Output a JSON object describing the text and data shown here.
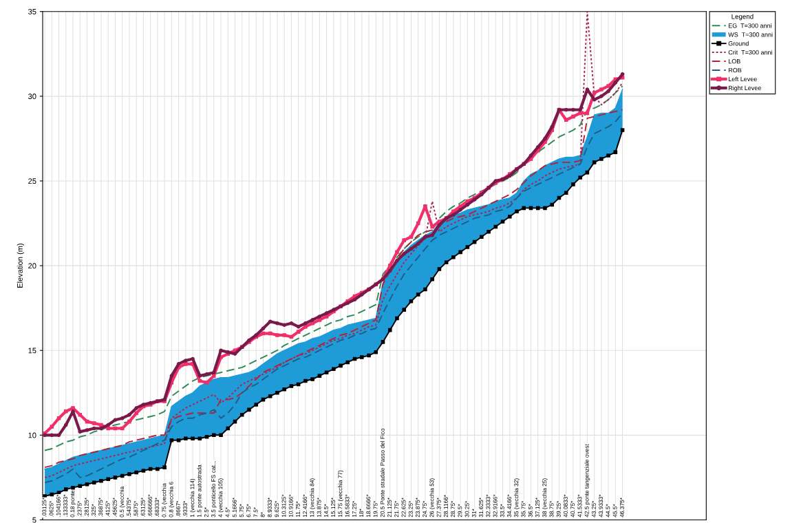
{
  "chart_data": {
    "type": "line",
    "ylabel": "Elevation (m)",
    "legend_title": "Legend",
    "legend": "top right",
    "grid": true,
    "ylim": [
      5,
      35
    ],
    "yticks": [
      5,
      10,
      15,
      20,
      25,
      30,
      35
    ],
    "categories": [
      ".03125*",
      ".0625*",
      ".104166*",
      ".133333*",
      "0.18 ponte",
      ".2375*",
      ".28125*",
      ".325*",
      ".36875*",
      ".4125*",
      ".45625*",
      "0.5 (vecchia",
      ".54375*",
      ".5875*",
      ".63125*",
      ".666666*",
      ".68333*",
      "0.75 (vecchia",
      "0.8 (vecchia 6",
      ".8667*",
      ".9333*",
      "1 (vecchia 114)",
      "1.5 ponte autostrada",
      "2.5*",
      "3.5 ponticello FS cat...",
      "4 (vecchia 105)",
      "4.5*",
      "5.1666*",
      "5.75*",
      "6.75*",
      "7.5*",
      "8*",
      "8.9333*",
      "9.625*",
      "10.3125*",
      "10.9166*",
      "11.75*",
      "12.4166*",
      "13 (vecchia 84)",
      "13.875*",
      "14.5*",
      "15.125*",
      "15.75 (vecchia 77)",
      "16.5833*",
      "17.25*",
      "18*",
      "18.6666*",
      "19.75*",
      "20.5 Ponte stradale Passo del Fico",
      "21.125*",
      "21.75*",
      "22.625*",
      "23.25*",
      "23.875*",
      "24.75*",
      "26 (vecchia 53)",
      "27.375*",
      "28.1166*",
      "28.75*",
      "29.5*",
      "30.25*",
      "31*",
      "31.625*",
      "32.3333*",
      "32.9166*",
      "33.5*",
      "34.4166*",
      "35 (vecchia 32)",
      "35.75*",
      "36.5*",
      "37.125*",
      "38 (vecchia 25)",
      "38.75*",
      "39.25*",
      "40.0833*",
      "40.75*",
      "41.5333*",
      "42.5 ponte tangenziale ovest",
      "43.25*",
      "43.9333*",
      "44.5*",
      "45.5*",
      "46.375*"
    ],
    "series": [
      {
        "name": "EG  T=300 anni",
        "color": "#2e8b57",
        "line_style": "dashed",
        "marker": "none",
        "values": [
          9.1,
          9.2,
          9.4,
          9.6,
          9.7,
          9.9,
          10.0,
          10.2,
          10.3,
          10.5,
          10.6,
          10.7,
          10.8,
          10.9,
          11.0,
          11.1,
          11.2,
          11.4,
          12.3,
          12.6,
          12.9,
          13.2,
          13.4,
          13.5,
          13.6,
          13.7,
          13.8,
          13.9,
          14.0,
          14.2,
          14.4,
          14.6,
          14.8,
          15.0,
          15.3,
          15.5,
          15.7,
          15.9,
          16.1,
          16.3,
          16.5,
          16.7,
          16.8,
          17.0,
          17.1,
          17.3,
          17.5,
          17.7,
          19.5,
          20.0,
          20.5,
          21.0,
          21.4,
          21.7,
          22.0,
          22.1,
          22.8,
          23.2,
          23.5,
          23.7,
          24.0,
          24.2,
          24.4,
          24.6,
          24.8,
          25.0,
          25.2,
          25.5,
          26.0,
          26.4,
          26.7,
          27.0,
          27.3,
          27.6,
          27.8,
          28.0,
          28.3,
          29.2,
          29.3,
          29.5,
          29.8,
          30.2,
          30.6
        ]
      },
      {
        "name": "WS  T=300 anni",
        "type": "area",
        "color": "#1f9bd7",
        "line_style": "solid",
        "marker": "none",
        "values": [
          8.0,
          8.1,
          8.3,
          8.5,
          8.7,
          8.8,
          8.9,
          9.0,
          9.1,
          9.2,
          9.3,
          9.4,
          9.5,
          9.6,
          9.7,
          9.8,
          9.9,
          10.0,
          11.7,
          12.0,
          12.3,
          12.5,
          12.9,
          13.1,
          13.3,
          13.4,
          13.4,
          13.5,
          13.6,
          13.7,
          13.9,
          14.2,
          14.5,
          14.8,
          15.0,
          15.2,
          15.4,
          15.5,
          15.7,
          15.8,
          16.0,
          16.2,
          16.3,
          16.5,
          16.6,
          16.7,
          16.8,
          16.9,
          19.0,
          19.6,
          20.2,
          20.8,
          21.2,
          21.5,
          21.8,
          22.0,
          22.5,
          22.8,
          23.0,
          23.1,
          23.3,
          23.4,
          23.5,
          23.6,
          23.8,
          23.9,
          24.0,
          24.3,
          25.0,
          25.4,
          25.6,
          25.9,
          26.1,
          26.3,
          26.4,
          26.4,
          26.5,
          27.6,
          28.9,
          29.0,
          29.0,
          29.3,
          30.4
        ]
      },
      {
        "name": "Ground",
        "color": "#000000",
        "line_style": "solid",
        "marker": "square",
        "values": [
          6.4,
          6.5,
          6.6,
          6.8,
          6.9,
          7.0,
          7.1,
          7.2,
          7.3,
          7.4,
          7.5,
          7.6,
          7.7,
          7.8,
          7.9,
          8.0,
          8.0,
          8.1,
          9.7,
          9.7,
          9.8,
          9.8,
          9.8,
          9.9,
          10.0,
          10.0,
          10.4,
          10.8,
          11.2,
          11.5,
          11.8,
          12.1,
          12.3,
          12.5,
          12.7,
          12.9,
          13.0,
          13.2,
          13.3,
          13.5,
          13.7,
          13.9,
          14.1,
          14.3,
          14.5,
          14.6,
          14.7,
          14.9,
          15.5,
          16.2,
          16.9,
          17.4,
          17.9,
          18.3,
          18.6,
          19.2,
          19.8,
          20.2,
          20.5,
          20.8,
          21.1,
          21.4,
          21.7,
          22.0,
          22.3,
          22.6,
          22.9,
          23.2,
          23.4,
          23.4,
          23.4,
          23.4,
          23.6,
          24.0,
          24.3,
          24.8,
          25.2,
          25.5,
          26.1,
          26.3,
          26.5,
          26.7,
          28.0
        ]
      },
      {
        "name": "Crit  T=300 anni",
        "color": "#a8245a",
        "line_style": "dotted",
        "marker": "none",
        "values": [
          7.5,
          7.6,
          7.8,
          8.0,
          8.2,
          8.3,
          8.4,
          8.5,
          8.6,
          8.7,
          8.8,
          8.9,
          9.0,
          9.1,
          9.2,
          9.3,
          9.4,
          9.5,
          11.0,
          11.3,
          11.6,
          11.8,
          12.0,
          12.2,
          12.4,
          11.9,
          12.2,
          12.6,
          13.0,
          13.2,
          13.4,
          13.6,
          13.8,
          14.0,
          14.3,
          14.5,
          14.7,
          14.8,
          15.0,
          15.2,
          15.4,
          15.6,
          15.7,
          15.9,
          16.0,
          16.2,
          16.4,
          16.5,
          18.0,
          18.8,
          19.5,
          20.2,
          20.7,
          21.2,
          21.6,
          23.8,
          22.0,
          22.3,
          22.5,
          22.7,
          22.9,
          23.0,
          23.1,
          23.2,
          23.4,
          23.5,
          23.7,
          24.0,
          24.5,
          24.8,
          25.0,
          25.3,
          25.5,
          25.7,
          25.8,
          25.9,
          26.0,
          35.0,
          30.0,
          29.5,
          29.8,
          30.2,
          30.8
        ]
      },
      {
        "name": "LOB",
        "color": "#b0243a",
        "line_style": "dashed",
        "marker": "none",
        "values": [
          8.1,
          8.2,
          8.4,
          8.5,
          8.6,
          8.8,
          8.9,
          9.0,
          9.1,
          9.2,
          9.3,
          9.4,
          9.6,
          9.7,
          9.8,
          9.9,
          10.0,
          10.0,
          10.9,
          11.1,
          11.2,
          11.3,
          11.3,
          11.3,
          11.3,
          12.1,
          12.1,
          12.2,
          12.5,
          12.9,
          13.3,
          13.7,
          13.9,
          14.1,
          14.3,
          14.5,
          14.7,
          14.9,
          15.1,
          15.3,
          15.5,
          15.7,
          15.9,
          16.0,
          16.2,
          16.4,
          16.6,
          16.8,
          18.9,
          19.7,
          20.4,
          21.0,
          21.4,
          21.8,
          22.0,
          22.1,
          22.4,
          22.6,
          22.8,
          22.9,
          23.0,
          23.2,
          23.4,
          23.6,
          23.8,
          24.0,
          24.2,
          24.5,
          24.9,
          25.3,
          25.6,
          25.9,
          26.0,
          26.1,
          26.1,
          26.1,
          26.2,
          28.7,
          28.8,
          28.9,
          29.0,
          29.1,
          29.2
        ]
      },
      {
        "name": "ROB",
        "color": "#1d5f8a",
        "line_style": "dashed",
        "marker": "none",
        "values": [
          7.2,
          7.3,
          7.5,
          7.7,
          8.0,
          7.5,
          7.6,
          7.8,
          8.0,
          8.2,
          8.4,
          8.6,
          8.7,
          8.9,
          9.1,
          9.3,
          9.5,
          9.7,
          10.5,
          10.8,
          11.0,
          11.0,
          11.2,
          11.3,
          11.5,
          11.0,
          11.3,
          11.8,
          12.5,
          12.8,
          13.0,
          13.3,
          13.6,
          13.9,
          14.1,
          14.3,
          14.5,
          14.6,
          14.8,
          15.0,
          15.2,
          15.4,
          15.6,
          15.7,
          15.9,
          16.0,
          16.2,
          16.3,
          17.2,
          18.0,
          18.8,
          19.5,
          20.0,
          20.5,
          21.0,
          21.5,
          21.8,
          22.0,
          22.2,
          22.4,
          22.6,
          22.8,
          22.9,
          23.0,
          23.2,
          23.3,
          23.5,
          24.0,
          24.4,
          24.6,
          24.8,
          25.0,
          25.2,
          25.4,
          25.6,
          25.8,
          26.0,
          27.0,
          27.8,
          28.0,
          28.2,
          28.5,
          29.0
        ]
      },
      {
        "name": "Left Levee",
        "color": "#f0306a",
        "line_style": "solid",
        "marker": "square",
        "values": [
          10.1,
          10.5,
          11.0,
          11.4,
          11.6,
          11.2,
          10.8,
          10.7,
          10.6,
          10.4,
          10.4,
          10.4,
          10.8,
          11.3,
          11.7,
          11.8,
          12.0,
          12.0,
          13.1,
          14.0,
          14.2,
          14.2,
          13.2,
          13.1,
          13.5,
          14.6,
          14.8,
          15.0,
          15.2,
          15.5,
          15.8,
          16.0,
          16.0,
          15.9,
          15.9,
          15.8,
          16.1,
          16.4,
          16.6,
          16.8,
          17.0,
          17.3,
          17.6,
          17.9,
          18.2,
          18.4,
          18.6,
          18.9,
          19.2,
          20.0,
          20.8,
          21.5,
          21.7,
          22.5,
          23.5,
          22.3,
          22.6,
          22.8,
          23.2,
          23.5,
          23.8,
          24.0,
          24.3,
          24.6,
          24.9,
          25.1,
          25.4,
          25.7,
          26.0,
          26.3,
          26.8,
          27.3,
          28.0,
          29.2,
          28.6,
          28.8,
          29.0,
          29.0,
          30.2,
          30.4,
          30.6,
          31.0,
          31.1
        ]
      },
      {
        "name": "Right Levee",
        "color": "#7a1a4a",
        "line_style": "solid",
        "marker": "circle",
        "values": [
          10.0,
          10.0,
          10.0,
          10.6,
          11.4,
          10.2,
          10.3,
          10.4,
          10.4,
          10.6,
          10.9,
          11.0,
          11.2,
          11.6,
          11.8,
          11.9,
          12.0,
          12.1,
          13.5,
          14.2,
          14.4,
          14.5,
          13.5,
          13.6,
          13.7,
          15.0,
          14.9,
          14.8,
          15.2,
          15.6,
          15.9,
          16.3,
          16.7,
          16.6,
          16.5,
          16.6,
          16.4,
          16.6,
          16.8,
          17.0,
          17.2,
          17.4,
          17.6,
          17.8,
          18.0,
          18.3,
          18.6,
          18.9,
          19.2,
          19.7,
          20.3,
          20.7,
          21.0,
          21.3,
          21.7,
          21.8,
          22.4,
          22.8,
          23.0,
          23.3,
          23.6,
          23.9,
          24.2,
          24.6,
          25.0,
          25.1,
          25.3,
          25.7,
          26.0,
          26.5,
          27.0,
          27.5,
          28.2,
          29.2,
          29.2,
          29.2,
          29.2,
          30.4,
          29.8,
          30.0,
          30.3,
          30.8,
          31.3
        ]
      }
    ]
  }
}
